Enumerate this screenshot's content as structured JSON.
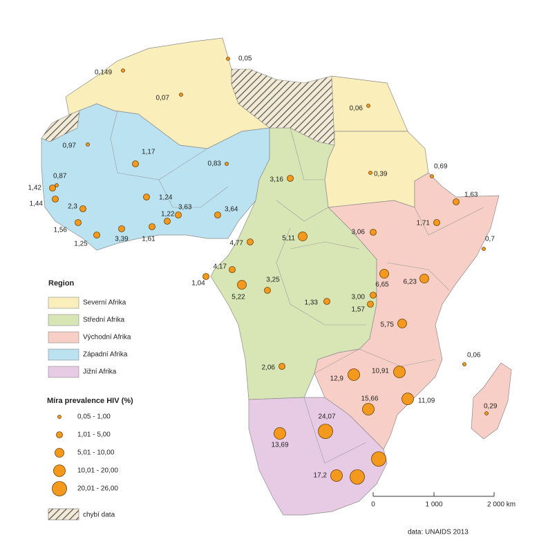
{
  "legend": {
    "region_title": "Region",
    "regions": [
      {
        "label": "Severní Afrika",
        "color": "#faeebb"
      },
      {
        "label": "Střední Afrika",
        "color": "#d8e6b6"
      },
      {
        "label": "Východní Afrika",
        "color": "#f7cfc6"
      },
      {
        "label": "Západní Afrika",
        "color": "#bae2f0"
      },
      {
        "label": "Jižní Afrika",
        "color": "#e7cbe4"
      }
    ],
    "prevalence_title": "Míra prevalence HIV (%)",
    "classes": [
      "0,05 - 1,00",
      "1,01 - 5,00",
      "5,01 - 10,00",
      "10,01 - 20,00",
      "20,01 - 26,00"
    ],
    "missing": "chybí data"
  },
  "points": [
    "0,149",
    "0,05",
    "0,07",
    "0,06",
    "0,97",
    "1,17",
    "0,83",
    "3,16",
    "0,39",
    "0,69",
    "1,63",
    "0,87",
    "1,42",
    "1,44",
    "2,3",
    "1,24",
    "3,63",
    "3,64",
    "1,22",
    "1,56",
    "3,39",
    "1,61",
    "1,25",
    "3,06",
    "1,71",
    "0,7",
    "5,11",
    "4,77",
    "4,17",
    "1,04",
    "3,25",
    "5,22",
    "6,65",
    "6,23",
    "3,00",
    "1,57",
    "1,33",
    "5,75",
    "0,06",
    "2,06",
    "10,91",
    "12,9",
    "11,09",
    "15,66",
    "0,29",
    "24,07",
    "13,69",
    "17,2",
    null,
    null
  ],
  "scale": {
    "labels": [
      "0",
      "1 000",
      "2 000 km"
    ]
  },
  "source": "data: UNAIDS 2013"
}
